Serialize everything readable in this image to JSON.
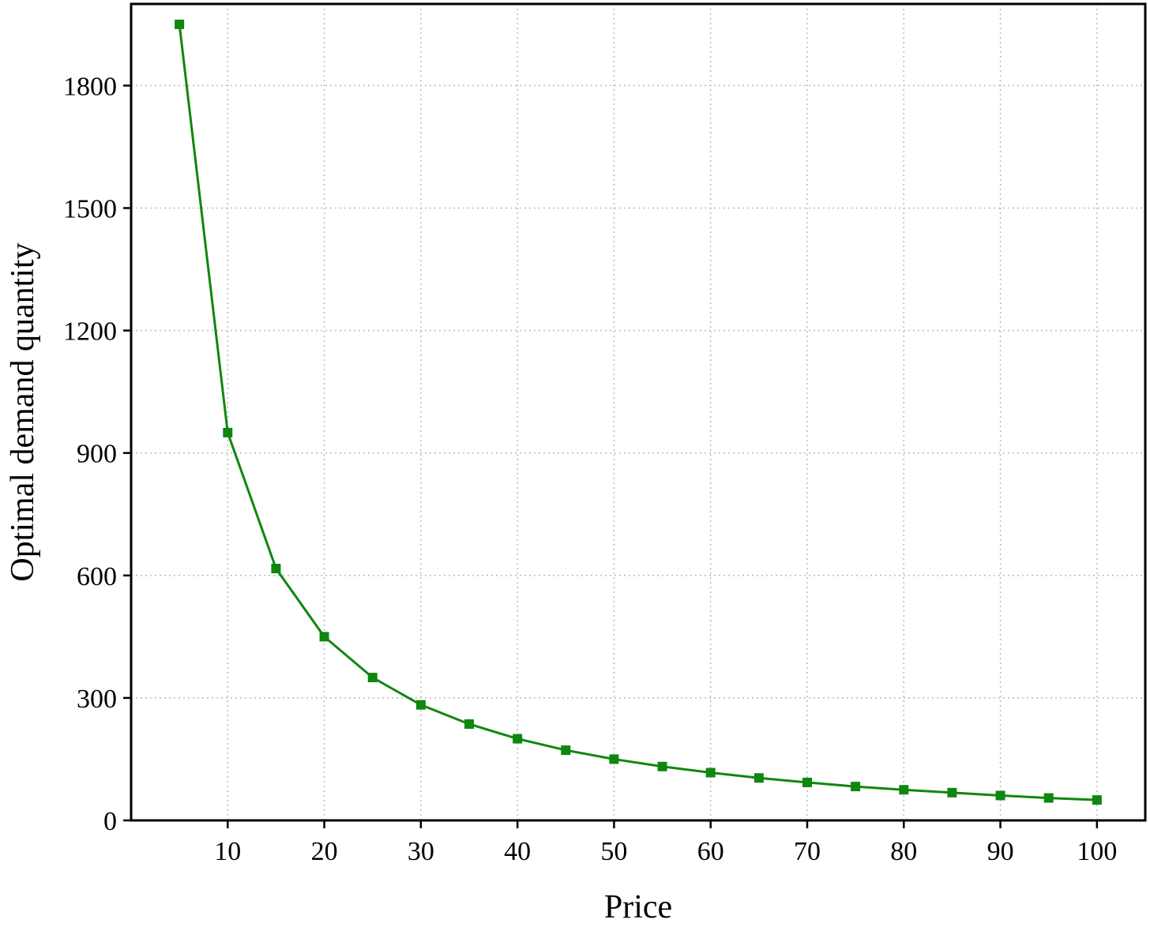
{
  "chart_data": {
    "type": "line",
    "x_label": "Price",
    "y_label": "Optimal demand quantity",
    "x": [
      5,
      10,
      15,
      20,
      25,
      30,
      35,
      40,
      45,
      50,
      55,
      60,
      65,
      70,
      75,
      80,
      85,
      90,
      95,
      100
    ],
    "series": [
      {
        "color": "#0f870f",
        "values": [
          1950,
          950,
          617,
          450,
          350,
          283,
          236,
          200,
          172,
          150,
          132,
          117,
          104,
          93,
          83,
          75,
          68,
          61,
          55,
          50
        ]
      }
    ],
    "xlim": [
      0,
      105
    ],
    "xticks": [
      10,
      20,
      30,
      40,
      50,
      60,
      70,
      80,
      90,
      100
    ],
    "ylim": [
      0,
      2000
    ],
    "yticks": [
      0,
      300,
      600,
      900,
      1200,
      1500,
      1800
    ],
    "grid": true
  }
}
